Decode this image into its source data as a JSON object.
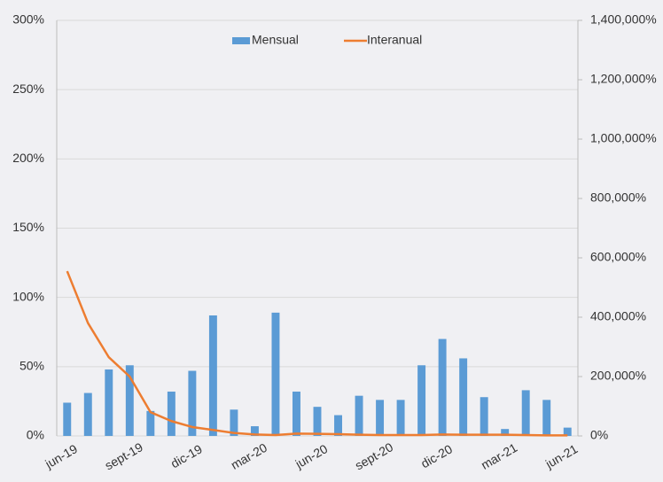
{
  "chart_data": {
    "type": "bar_line",
    "categories": [
      "jun-19",
      null,
      null,
      "sept-19",
      null,
      null,
      "dic-19",
      null,
      null,
      "mar-20",
      null,
      null,
      "jun-20",
      null,
      null,
      "sept-20",
      null,
      null,
      "dic-20",
      null,
      null,
      "mar-21",
      null,
      null,
      "jun-21"
    ],
    "series": [
      {
        "name": "Mensual",
        "color": "#5b9bd5",
        "type": "bar",
        "values": [
          24,
          31,
          48,
          51,
          18,
          32,
          47,
          87,
          19,
          7,
          89,
          32,
          21,
          15,
          29,
          26,
          26,
          51,
          70,
          56,
          28,
          5,
          33,
          26,
          6
        ]
      },
      {
        "name": "Interanual",
        "color": "#ed7d31",
        "type": "line",
        "axis": "y2",
        "values": [
          555000,
          380000,
          265000,
          200000,
          80000,
          50000,
          30000,
          20000,
          10000,
          5000,
          3000,
          8000,
          7000,
          6000,
          4000,
          3000,
          3000,
          3000,
          5000,
          4000,
          4000,
          4000,
          3000,
          2000,
          2000
        ]
      }
    ],
    "ylim": [
      0,
      300
    ],
    "yticks": [
      {
        "value": 0,
        "label": "0%"
      },
      {
        "value": 50,
        "label": "50%"
      },
      {
        "value": 100,
        "label": "100%"
      },
      {
        "value": 150,
        "label": "150%"
      },
      {
        "value": 200,
        "label": "200%"
      },
      {
        "value": 250,
        "label": "250%"
      },
      {
        "value": 300,
        "label": "300%"
      }
    ],
    "y2lim": [
      0,
      1400000
    ],
    "y2ticks": [
      {
        "value": 0,
        "label": "0%"
      },
      {
        "value": 200000,
        "label": "200,000%"
      },
      {
        "value": 400000,
        "label": "400,000%"
      },
      {
        "value": 600000,
        "label": "600,000%"
      },
      {
        "value": 800000,
        "label": "800,000%"
      },
      {
        "value": 1000000,
        "label": "1,000,000%"
      },
      {
        "value": 1200000,
        "label": "1,200,000%"
      },
      {
        "value": 1400000,
        "label": "1,400,000%"
      }
    ],
    "grid": true,
    "legend": "top"
  }
}
